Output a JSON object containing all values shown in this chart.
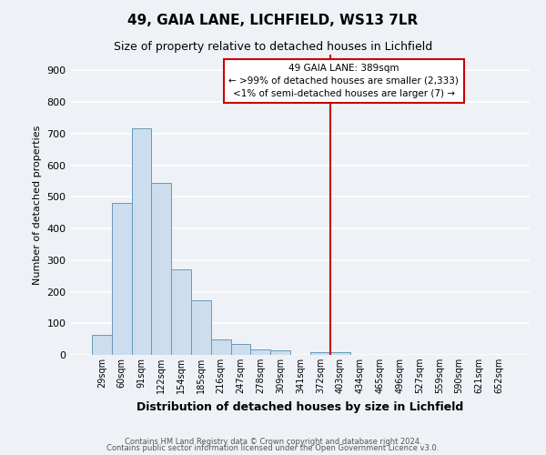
{
  "title": "49, GAIA LANE, LICHFIELD, WS13 7LR",
  "subtitle": "Size of property relative to detached houses in Lichfield",
  "xlabel": "Distribution of detached houses by size in Lichfield",
  "ylabel": "Number of detached properties",
  "bar_labels": [
    "29sqm",
    "60sqm",
    "91sqm",
    "122sqm",
    "154sqm",
    "185sqm",
    "216sqm",
    "247sqm",
    "278sqm",
    "309sqm",
    "341sqm",
    "372sqm",
    "403sqm",
    "434sqm",
    "465sqm",
    "496sqm",
    "527sqm",
    "559sqm",
    "590sqm",
    "621sqm",
    "652sqm"
  ],
  "bar_heights": [
    62,
    480,
    718,
    544,
    272,
    172,
    48,
    35,
    18,
    15,
    0,
    10,
    8,
    0,
    0,
    0,
    0,
    0,
    0,
    0,
    0
  ],
  "bar_color": "#ccdded",
  "bar_edgecolor": "#6699bb",
  "ylim": [
    0,
    950
  ],
  "yticks": [
    0,
    100,
    200,
    300,
    400,
    500,
    600,
    700,
    800,
    900
  ],
  "vline_color": "#cc0000",
  "annotation_title": "49 GAIA LANE: 389sqm",
  "annotation_line1": "← >99% of detached houses are smaller (2,333)",
  "annotation_line2": "<1% of semi-detached houses are larger (7) →",
  "annotation_box_color": "#cc0000",
  "footer1": "Contains HM Land Registry data © Crown copyright and database right 2024.",
  "footer2": "Contains public sector information licensed under the Open Government Licence v3.0.",
  "background_color": "#eef2f7",
  "grid_color": "#ffffff"
}
